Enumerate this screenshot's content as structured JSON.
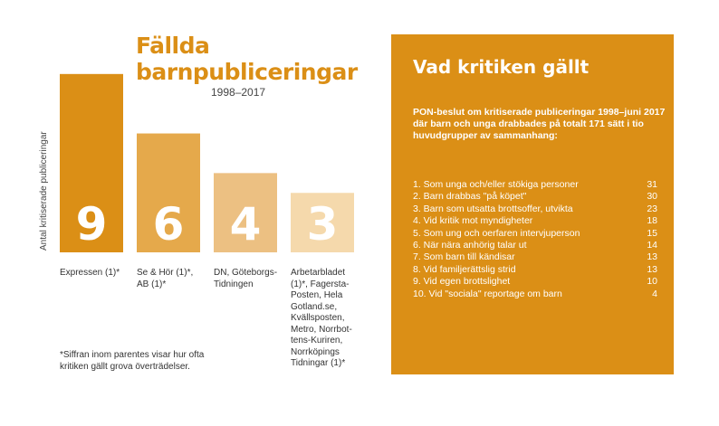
{
  "chart_data": {
    "type": "bar",
    "title": "Fällda barnpubliceringar",
    "subtitle": "1998–2017",
    "ylabel": "Antal kritiserade publiceringar",
    "categories": [
      "Expressen (1)*",
      "Se & Hör (1)*,\nAB (1)*",
      "DN, Göteborgs-\nTidningen",
      "Arbetarbladet\n(1)*, Fagersta-\nPosten, Hela\nGotland.se,\nKvällsposten,\nMetro, Norrbot-\ntens-Kuriren,\nNorrköpings\nTidningar (1)*"
    ],
    "values": [
      9,
      6,
      4,
      3
    ],
    "bar_labels": [
      "9",
      "6",
      "4",
      "3"
    ],
    "ylim": [
      0,
      11
    ],
    "grid": false,
    "colors": [
      "#db8f16",
      "#e5a94b",
      "#ecc082",
      "#f5d9ac"
    ]
  },
  "footnote": "*Siffran inom parentes visar hur ofta\nkritiken gällt grova överträdelser.",
  "panel": {
    "title": "Vad kritiken gällt",
    "intro": "PON-beslut om kritiserade publiceringar 1998–juni 2017 där barn och unga drabbades på totalt 171 sätt i tio huvudgrupper av sammanhang:",
    "background": "#db8f16",
    "items": [
      {
        "label": "1. Som unga och/eller stökiga personer",
        "count": "31"
      },
      {
        "label": "2. Barn drabbas \"på köpet\"",
        "count": "30"
      },
      {
        "label": "3. Barn som utsatta brottsoffer, utvikta",
        "count": "23"
      },
      {
        "label": "4. Vid kritik mot myndigheter",
        "count": "18"
      },
      {
        "label": "5. Som ung och oerfaren intervjuperson",
        "count": "15"
      },
      {
        "label": "6. När nära anhörig talar ut",
        "count": "14"
      },
      {
        "label": "7. Som barn till kändisar",
        "count": "13"
      },
      {
        "label": "8. Vid familjerättslig strid",
        "count": "13"
      },
      {
        "label": "9. Vid egen brottslighet",
        "count": "10"
      },
      {
        "label": "10. Vid \"sociala\" reportage om barn",
        "count": "4"
      }
    ]
  }
}
